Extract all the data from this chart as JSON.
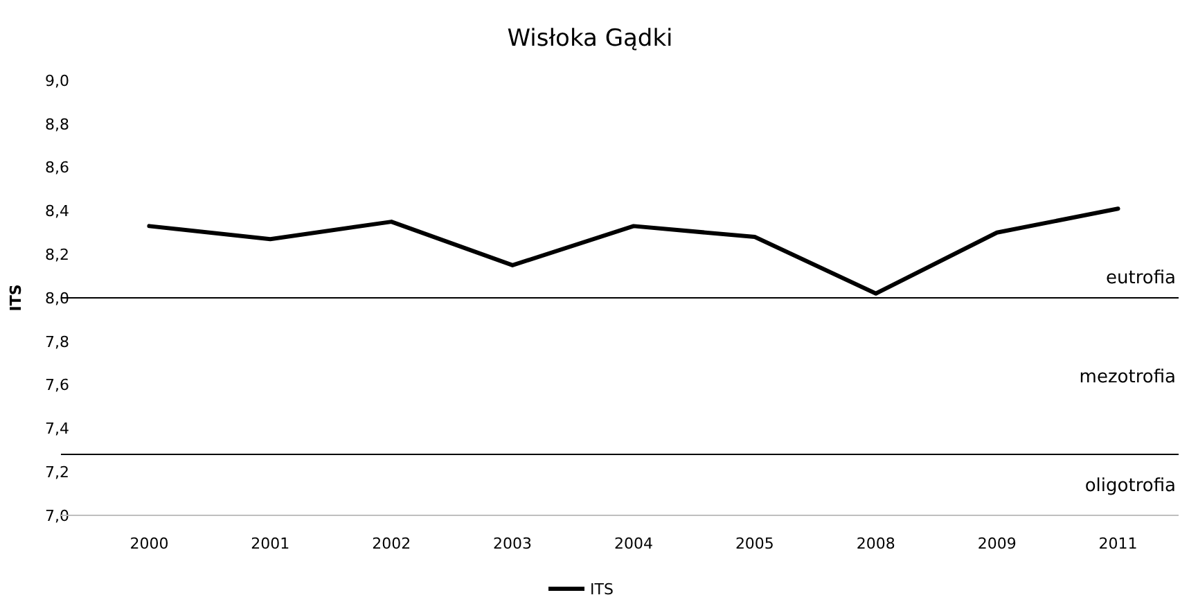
{
  "chart_data": {
    "type": "line",
    "title": "Wisłoka Gądki",
    "ylabel": "ITS",
    "categories": [
      "2000",
      "2001",
      "2002",
      "2003",
      "2004",
      "2005",
      "2008",
      "2009",
      "2011"
    ],
    "series": [
      {
        "name": "ITS",
        "color": "#000000",
        "values": [
          8.33,
          8.27,
          8.35,
          8.15,
          8.33,
          8.28,
          8.02,
          8.3,
          8.41
        ]
      }
    ],
    "ylim": [
      7.0,
      9.0
    ],
    "yticks": [
      {
        "value": 7.0,
        "label": "7,0"
      },
      {
        "value": 7.2,
        "label": "7,2"
      },
      {
        "value": 7.4,
        "label": "7,4"
      },
      {
        "value": 7.6,
        "label": "7,6"
      },
      {
        "value": 7.8,
        "label": "7,8"
      },
      {
        "value": 8.0,
        "label": "8,0"
      },
      {
        "value": 8.2,
        "label": "8,2"
      },
      {
        "value": 8.4,
        "label": "8,4"
      },
      {
        "value": 8.6,
        "label": "8,6"
      },
      {
        "value": 8.8,
        "label": "8,8"
      },
      {
        "value": 9.0,
        "label": "9,0"
      }
    ],
    "ref_lines": [
      {
        "axis": "y",
        "value": 8.0,
        "color": "#000000"
      },
      {
        "axis": "y",
        "value": 7.28,
        "color": "#000000"
      }
    ],
    "annotations": [
      "eutrofia",
      "mezotrofia",
      "oligotrofia"
    ],
    "grid": false,
    "legend": "bottom",
    "marker": "none",
    "line_style": "solid"
  }
}
